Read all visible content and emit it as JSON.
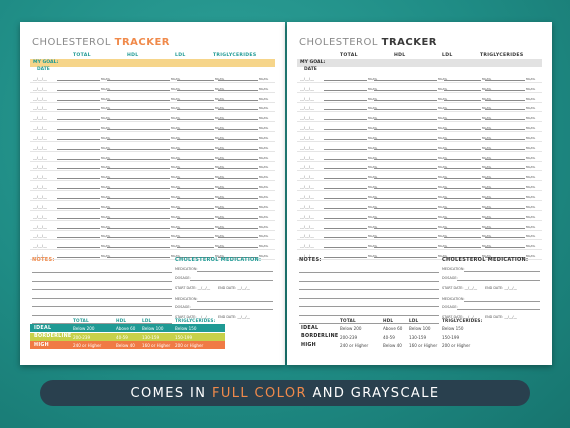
{
  "title": {
    "part1": "CHOLESTEROL",
    "part2": "TRACKER"
  },
  "columns": [
    "TOTAL",
    "HDL",
    "LDL",
    "TRIGLYCERIDES"
  ],
  "goal_label": "MY GOAL:",
  "date_label": "DATE",
  "date_placeholder": "__/__/__",
  "unit": "MG/DL",
  "row_count": 19,
  "notes_label": "NOTES:",
  "medication": {
    "title": "CHOLESTEROL MEDICATION:",
    "medication_label": "MEDICATION:",
    "dosage_label": "DOSAGE:",
    "start_label": "START DATE:",
    "end_label": "END DATE:",
    "date_placeholder": "__/__/__"
  },
  "reference": {
    "headers": [
      "TOTAL",
      "HDL",
      "LDL",
      "TRIGLYCERIDES:"
    ],
    "rows": [
      {
        "label": "IDEAL",
        "values": [
          "Below 200",
          "Above 60",
          "Below 100",
          "Below 150"
        ]
      },
      {
        "label": "BORDERLINE",
        "values": [
          "200-239",
          "40-59",
          "130-159",
          "150-199"
        ]
      },
      {
        "label": "HIGH",
        "values": [
          "240 or Higher",
          "Below 40",
          "160 or Higher",
          "200 or Higher"
        ]
      }
    ]
  },
  "banner": {
    "part1": "COMES IN ",
    "highlight": "FULL COLOR",
    "part2": " AND GRAYSCALE"
  },
  "colors": {
    "background": "#1f8c85",
    "banner": "#29404e",
    "title_gray": "#8a8a8a",
    "title_orange": "#f08a4b",
    "teal": "#1f9a94",
    "goal_band": "#f6d58a",
    "ideal": "#1f9a94",
    "borderline": "#c7d14a",
    "high": "#f07a45"
  }
}
